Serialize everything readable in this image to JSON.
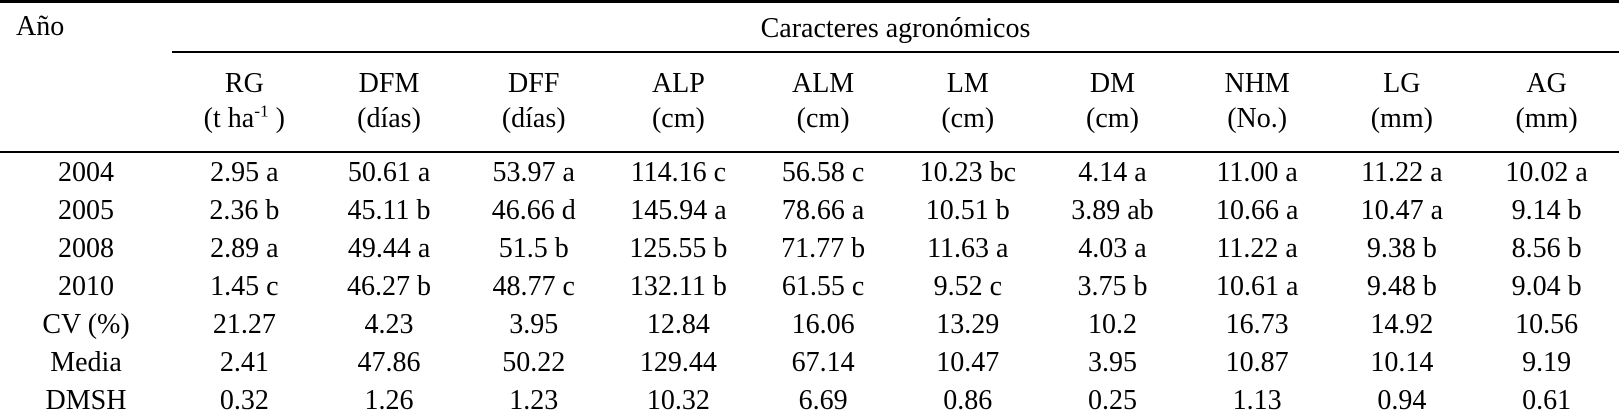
{
  "colors": {
    "background": "#ffffff",
    "text": "#000000",
    "rule": "#000000"
  },
  "table": {
    "corner_header": "Año",
    "group_header": "Caracteres agronómicos",
    "columns": [
      {
        "abbr": "RG",
        "unit_pre": "(t ha",
        "unit_sup": "-1",
        "unit_post": " )"
      },
      {
        "abbr": "DFM",
        "unit_pre": "(días)",
        "unit_sup": "",
        "unit_post": ""
      },
      {
        "abbr": "DFF",
        "unit_pre": "(días)",
        "unit_sup": "",
        "unit_post": ""
      },
      {
        "abbr": "ALP",
        "unit_pre": "(cm)",
        "unit_sup": "",
        "unit_post": ""
      },
      {
        "abbr": "ALM",
        "unit_pre": "(cm)",
        "unit_sup": "",
        "unit_post": ""
      },
      {
        "abbr": "LM",
        "unit_pre": "(cm)",
        "unit_sup": "",
        "unit_post": ""
      },
      {
        "abbr": "DM",
        "unit_pre": "(cm)",
        "unit_sup": "",
        "unit_post": ""
      },
      {
        "abbr": "NHM",
        "unit_pre": "(No.)",
        "unit_sup": "",
        "unit_post": ""
      },
      {
        "abbr": "LG",
        "unit_pre": "(mm)",
        "unit_sup": "",
        "unit_post": ""
      },
      {
        "abbr": "AG",
        "unit_pre": "(mm)",
        "unit_sup": "",
        "unit_post": ""
      }
    ],
    "rows": [
      {
        "label": "2004",
        "values": [
          "2.95 a",
          "50.61 a",
          "53.97 a",
          "114.16 c",
          "56.58 c",
          "10.23 bc",
          "4.14 a",
          "11.00 a",
          "11.22 a",
          "10.02 a"
        ]
      },
      {
        "label": "2005",
        "values": [
          "2.36 b",
          "45.11 b",
          "46.66 d",
          "145.94 a",
          "78.66 a",
          "10.51 b",
          "3.89 ab",
          "10.66 a",
          "10.47 a",
          "9.14 b"
        ]
      },
      {
        "label": "2008",
        "values": [
          "2.89 a",
          "49.44 a",
          "51.5 b",
          "125.55 b",
          "71.77 b",
          "11.63 a",
          "4.03 a",
          "11.22 a",
          "9.38 b",
          "8.56 b"
        ]
      },
      {
        "label": "2010",
        "values": [
          "1.45 c",
          "46.27 b",
          "48.77 c",
          "132.11 b",
          "61.55 c",
          "9.52 c",
          "3.75 b",
          "10.61 a",
          "9.48 b",
          "9.04 b"
        ]
      },
      {
        "label": "CV (%)",
        "values": [
          "21.27",
          "4.23",
          "3.95",
          "12.84",
          "16.06",
          "13.29",
          "10.2",
          "16.73",
          "14.92",
          "10.56"
        ]
      },
      {
        "label": "Media",
        "values": [
          "2.41",
          "47.86",
          "50.22",
          "129.44",
          "67.14",
          "10.47",
          "3.95",
          "10.87",
          "10.14",
          "9.19"
        ]
      },
      {
        "label": "DMSH",
        "values": [
          "0.32",
          "1.26",
          "1.23",
          "10.32",
          "6.69",
          "0.86",
          "0.25",
          "1.13",
          "0.94",
          "0.61"
        ]
      }
    ]
  }
}
